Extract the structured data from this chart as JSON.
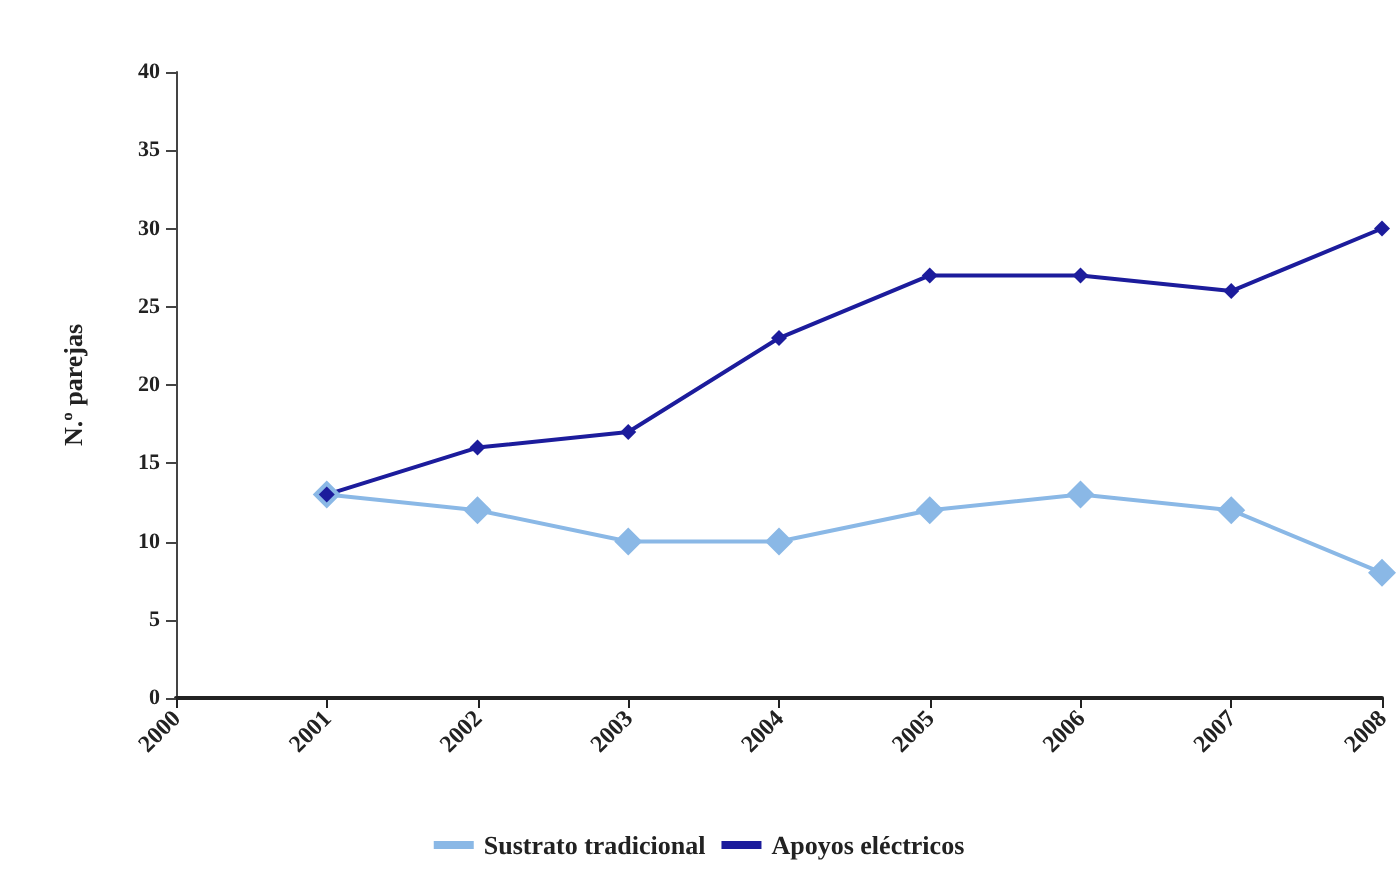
{
  "chart_data": {
    "type": "line",
    "ylabel": "N.º parejas",
    "categories": [
      "2000",
      "2001",
      "2002",
      "2003",
      "2004",
      "2005",
      "2006",
      "2007",
      "2008"
    ],
    "series": [
      {
        "name": "Sustrato tradicional",
        "color": "#8ab8e6",
        "values": [
          null,
          13,
          12,
          10,
          10,
          12,
          13,
          12,
          8
        ]
      },
      {
        "name": "Apoyos eléctricos",
        "color": "#1c1c9c",
        "values": [
          null,
          13,
          16,
          17,
          23,
          27,
          27,
          26,
          30
        ]
      }
    ],
    "ylim": [
      0,
      40
    ],
    "yticks": [
      0,
      5,
      10,
      15,
      20,
      25,
      30,
      35,
      40
    ],
    "grid": false,
    "legend": "bottom",
    "marker": "diamond",
    "line_style": "solid"
  }
}
